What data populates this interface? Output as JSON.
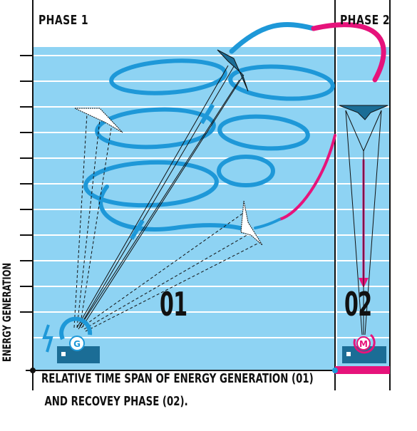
{
  "phases": {
    "phase1_label": "PHASE 1",
    "phase2_label": "PHASE 2",
    "phase1_number": "01",
    "phase2_number": "02"
  },
  "axis": {
    "y_label": "ENERGY GENERATION"
  },
  "caption": {
    "line1": "RELATIVE TIME SPAN OF ENERGY GENERATION (01)",
    "line2": "AND RECOVEY PHASE (02)."
  },
  "icons": {
    "generator_letter": "G",
    "motor_letter": "M"
  },
  "colors": {
    "sky": "#8ed3f3",
    "flight_path": "#1e98d8",
    "recovery_path": "#e6137b",
    "ground_station": "#1b6d96",
    "stripes": "#ffffff"
  }
}
